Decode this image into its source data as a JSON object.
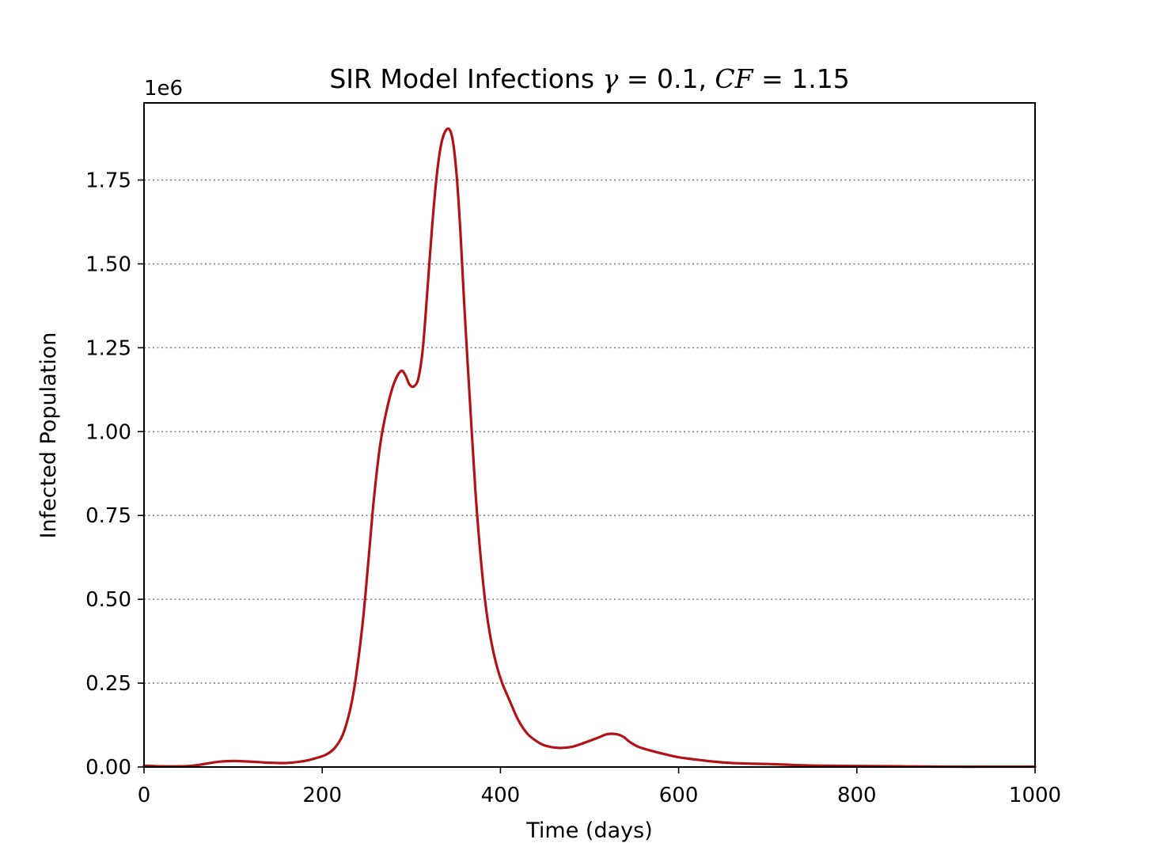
{
  "chart_data": {
    "type": "line",
    "title": {
      "prefix": "SIR Model Infections ",
      "gamma_symbol": "γ",
      "gamma_value": " = 0.1, ",
      "cf_symbol": "CF",
      "cf_value": " = 1.15"
    },
    "xlabel": "Time (days)",
    "ylabel": "Infected Population",
    "y_offset_text": "1e6",
    "xlim": [
      0,
      1000
    ],
    "ylim": [
      0,
      1.98
    ],
    "x_ticks": [
      0,
      200,
      400,
      600,
      800,
      1000
    ],
    "x_tick_labels": [
      "0",
      "200",
      "400",
      "600",
      "800",
      "1000"
    ],
    "y_ticks": [
      0,
      0.25,
      0.5,
      0.75,
      1.0,
      1.25,
      1.5,
      1.75
    ],
    "y_tick_labels": [
      "0.00",
      "0.25",
      "0.50",
      "0.75",
      "1.00",
      "1.25",
      "1.50",
      "1.75"
    ],
    "grid": "horizontal-dotted",
    "line_color": "#b31217",
    "grid_color": "#808080",
    "series": [
      {
        "x": [
          0,
          20,
          40,
          55,
          70,
          85,
          100,
          120,
          140,
          160,
          180,
          195,
          205,
          215,
          225,
          235,
          245,
          252,
          258,
          265,
          272,
          280,
          288,
          293,
          298,
          303,
          308,
          313,
          318,
          323,
          328,
          333,
          338,
          343,
          347,
          351,
          355,
          360,
          366,
          372,
          378,
          384,
          390,
          396,
          402,
          410,
          420,
          430,
          440,
          450,
          465,
          480,
          495,
          510,
          520,
          530,
          538,
          545,
          555,
          570,
          585,
          600,
          620,
          640,
          660,
          680,
          700,
          720,
          740,
          760,
          800,
          850,
          900,
          950,
          1000
        ],
        "y": [
          0.004,
          0.002,
          0.002,
          0.004,
          0.01,
          0.016,
          0.018,
          0.016,
          0.013,
          0.012,
          0.018,
          0.028,
          0.038,
          0.06,
          0.11,
          0.22,
          0.42,
          0.62,
          0.8,
          0.96,
          1.06,
          1.14,
          1.18,
          1.17,
          1.14,
          1.135,
          1.16,
          1.25,
          1.42,
          1.6,
          1.75,
          1.85,
          1.895,
          1.9,
          1.86,
          1.76,
          1.6,
          1.35,
          1.08,
          0.82,
          0.62,
          0.47,
          0.37,
          0.3,
          0.25,
          0.2,
          0.14,
          0.1,
          0.078,
          0.064,
          0.057,
          0.06,
          0.073,
          0.088,
          0.098,
          0.098,
          0.09,
          0.075,
          0.06,
          0.048,
          0.038,
          0.029,
          0.022,
          0.016,
          0.012,
          0.01,
          0.009,
          0.007,
          0.005,
          0.004,
          0.003,
          0.002,
          0.001,
          0.001,
          0.001
        ]
      }
    ]
  }
}
